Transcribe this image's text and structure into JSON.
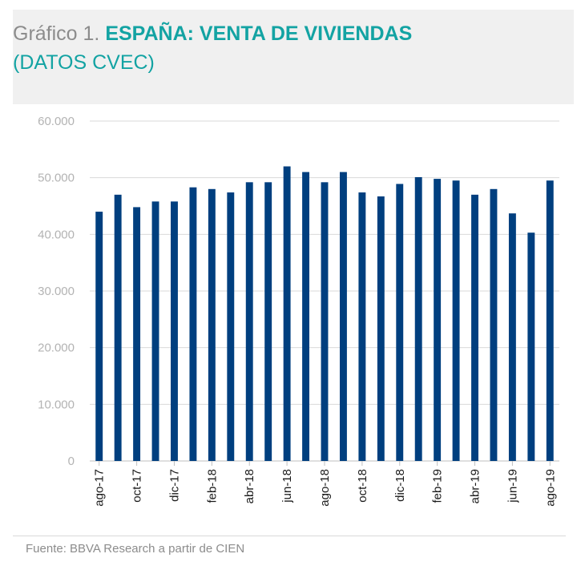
{
  "header": {
    "prefix": "Gráfico 1.",
    "title": "ESPAÑA: VENTA DE VIVIENDAS",
    "subtitle": "(DATOS CVEC)"
  },
  "source": "Fuente: BBVA Research a partir de CIEN",
  "colors": {
    "bar": "#003f7f",
    "title": "#13a3a3",
    "header_bg": "#f0f0f0",
    "grid": "#d9d9d9"
  },
  "chart_data": {
    "type": "bar",
    "title": "ESPAÑA: VENTA DE VIVIENDAS",
    "xlabel": "",
    "ylabel": "",
    "ylim": [
      0,
      60000
    ],
    "yticks": [
      0,
      10000,
      20000,
      30000,
      40000,
      50000,
      60000
    ],
    "ytick_labels": [
      "0",
      "10.000",
      "20.000",
      "30.000",
      "40.000",
      "50.000",
      "60.000"
    ],
    "grid": true,
    "categories": [
      "ago-17",
      "sep-17",
      "oct-17",
      "nov-17",
      "dic-17",
      "ene-18",
      "feb-18",
      "mar-18",
      "abr-18",
      "may-18",
      "jun-18",
      "jul-18",
      "ago-18",
      "sep-18",
      "oct-18",
      "nov-18",
      "dic-18",
      "ene-19",
      "feb-19",
      "mar-19",
      "abr-19",
      "may-19",
      "jun-19",
      "jul-19",
      "ago-19"
    ],
    "x_tick_labels": [
      "ago-17",
      "",
      "oct-17",
      "",
      "dic-17",
      "",
      "feb-18",
      "",
      "abr-18",
      "",
      "jun-18",
      "",
      "ago-18",
      "",
      "oct-18",
      "",
      "dic-18",
      "",
      "feb-19",
      "",
      "abr-19",
      "",
      "jun-19",
      "",
      "ago-19"
    ],
    "values": [
      44000,
      47000,
      44800,
      45800,
      45800,
      48300,
      48000,
      47400,
      49200,
      49200,
      52000,
      51000,
      49200,
      51000,
      47400,
      46700,
      48900,
      50100,
      49800,
      49500,
      47000,
      48000,
      43700,
      40300,
      49500
    ]
  }
}
